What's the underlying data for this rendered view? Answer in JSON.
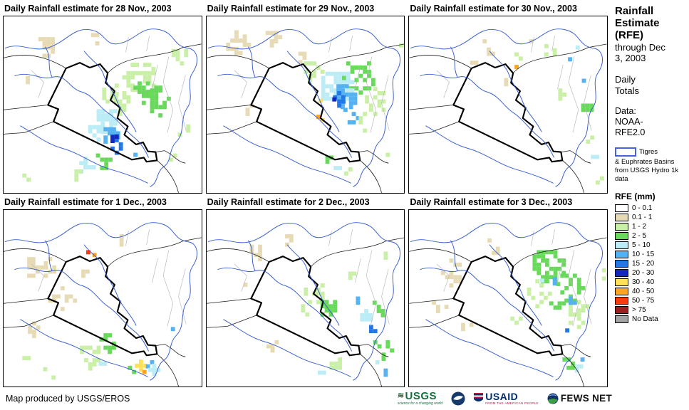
{
  "panels": [
    {
      "title": "Daily Rainfall estimate for 28 Nov., 2003"
    },
    {
      "title": "Daily Rainfall estimate for 29 Nov., 2003"
    },
    {
      "title": "Daily Rainfall estimate for 30 Nov., 2003"
    },
    {
      "title": "Daily Rainfall estimate for 1 Dec., 2003"
    },
    {
      "title": "Daily Rainfall estimate for 2 Dec., 2003"
    },
    {
      "title": "Daily Rainfall estimate for 3 Dec., 2003"
    }
  ],
  "sidebar": {
    "title": "Rainfall Estimate (RFE)",
    "through": "through Dec 3, 2003",
    "totals": "Daily Totals",
    "data_label": "Data:",
    "data_source": "NOAA-RFE2.0",
    "basin_legend": {
      "label_line1": "Tigres",
      "label_rest": "& Euphrates Basins from USGS Hydro 1k data",
      "border_color": "#4663D8"
    },
    "legend": {
      "title": "RFE (mm)",
      "items": [
        {
          "label": "0 - 0.1",
          "color": "#FFFFFF"
        },
        {
          "label": "0.1 - 1",
          "color": "#E7DBB6"
        },
        {
          "label": "1 - 2",
          "color": "#C9F0A6"
        },
        {
          "label": "2 - 5",
          "color": "#68D95A"
        },
        {
          "label": "5 - 10",
          "color": "#BCECF5"
        },
        {
          "label": "10 - 15",
          "color": "#55B1F0"
        },
        {
          "label": "15 - 20",
          "color": "#2176E8"
        },
        {
          "label": "20 - 30",
          "color": "#1326BE"
        },
        {
          "label": "30 - 40",
          "color": "#FFE159"
        },
        {
          "label": "40 - 50",
          "color": "#FFA41E"
        },
        {
          "label": "50 - 75",
          "color": "#F53B10"
        },
        {
          "label": "> 75",
          "color": "#9C1F1F"
        },
        {
          "label": "No Data",
          "color": "#A3A3A3"
        }
      ]
    }
  },
  "footer": {
    "credit": "Map produced by USGS/EROS",
    "logos": {
      "usgs": {
        "text": "USGS",
        "tagline": "science for a changing world"
      },
      "usaid": {
        "text": "USAID",
        "tagline": "FROM THE AMERICAN PEOPLE"
      },
      "fewsnet": {
        "text": "FEWS NET"
      }
    }
  }
}
